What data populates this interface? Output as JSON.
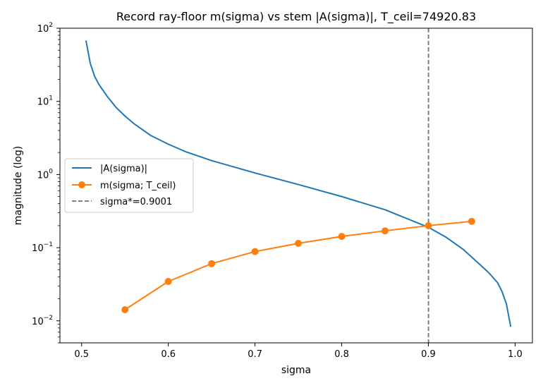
{
  "chart_data": {
    "type": "line",
    "title": "Record ray-floor m(sigma) vs stem |A(sigma)|, T_ceil=74920.83",
    "xlabel": "sigma",
    "ylabel": "magnitude (log)",
    "xlim": [
      0.475,
      1.02
    ],
    "ylim": [
      0.005,
      100
    ],
    "yscale": "log",
    "grid": false,
    "legend_position": "center-left",
    "x_ticks": [
      {
        "value": 0.5,
        "label": "0.5"
      },
      {
        "value": 0.6,
        "label": "0.6"
      },
      {
        "value": 0.7,
        "label": "0.7"
      },
      {
        "value": 0.8,
        "label": "0.8"
      },
      {
        "value": 0.9,
        "label": "0.9"
      },
      {
        "value": 1.0,
        "label": "1.0"
      }
    ],
    "y_ticks": [
      {
        "value": 0.01,
        "base": "10",
        "exp": "−2"
      },
      {
        "value": 0.1,
        "base": "10",
        "exp": "−1"
      },
      {
        "value": 1,
        "base": "10",
        "exp": "0"
      },
      {
        "value": 10,
        "base": "10",
        "exp": "1"
      },
      {
        "value": 100,
        "base": "10",
        "exp": "2"
      }
    ],
    "series": [
      {
        "name": "|A(sigma)|",
        "color": "#1f77b4",
        "marker": "none",
        "x": [
          0.505,
          0.51,
          0.515,
          0.52,
          0.53,
          0.54,
          0.55,
          0.56,
          0.58,
          0.6,
          0.62,
          0.65,
          0.7,
          0.75,
          0.8,
          0.85,
          0.9,
          0.92,
          0.94,
          0.96,
          0.97,
          0.98,
          0.985,
          0.99,
          0.995
        ],
        "y": [
          68,
          33,
          22,
          17,
          11.5,
          8.2,
          6.3,
          5.0,
          3.4,
          2.6,
          2.05,
          1.55,
          1.05,
          0.73,
          0.5,
          0.33,
          0.19,
          0.14,
          0.095,
          0.058,
          0.045,
          0.033,
          0.025,
          0.017,
          0.0083
        ]
      },
      {
        "name": "m(sigma; T_ceil)",
        "color": "#ff7f0e",
        "marker": "circle",
        "x": [
          0.55,
          0.6,
          0.65,
          0.7,
          0.75,
          0.8,
          0.85,
          0.9,
          0.95
        ],
        "y": [
          0.0142,
          0.0345,
          0.0605,
          0.0885,
          0.1145,
          0.1425,
          0.17,
          0.2,
          0.229
        ]
      }
    ],
    "vlines": [
      {
        "name": "sigma*=0.9001",
        "x": 0.9001,
        "color": "#7f7f7f",
        "style": "dashed"
      }
    ]
  }
}
